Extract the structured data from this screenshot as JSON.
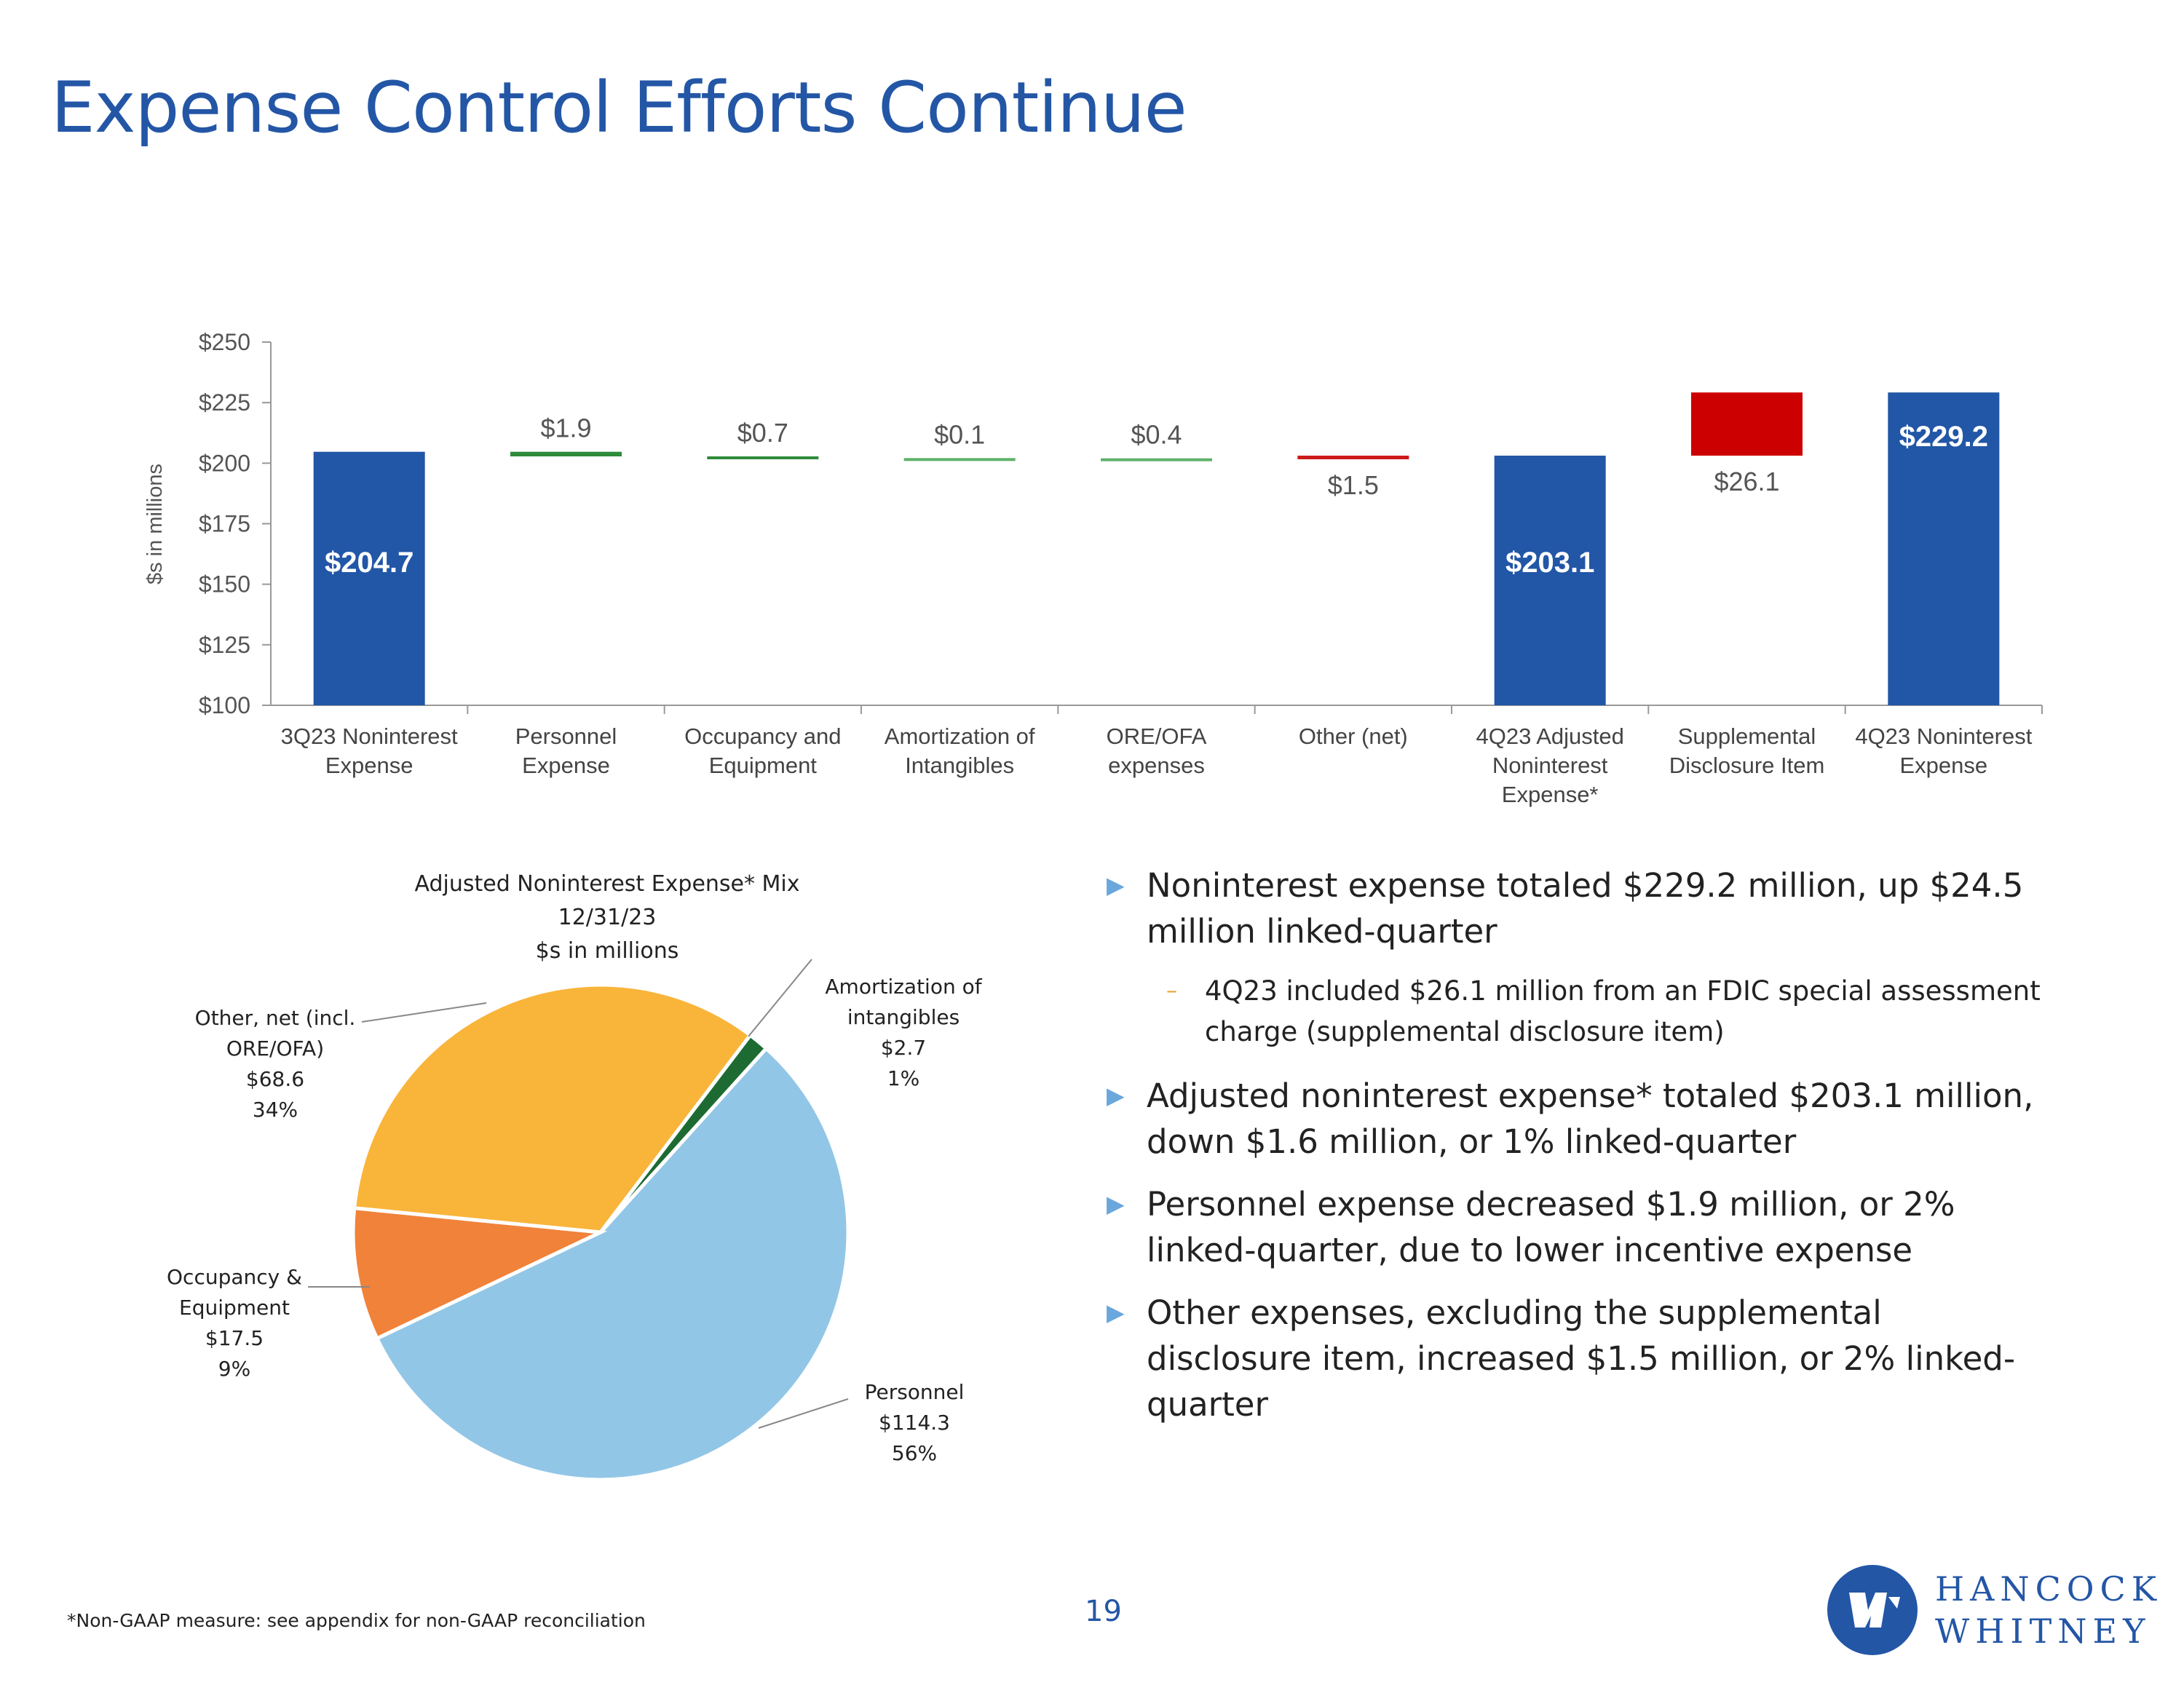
{
  "title": "Expense Control Efforts Continue",
  "chart_data": [
    {
      "type": "bar",
      "subtype": "waterfall",
      "ylabel": "$s in millions",
      "ylim": [
        100,
        250
      ],
      "yticks": [
        100,
        125,
        150,
        175,
        200,
        225,
        250
      ],
      "ytick_labels": [
        "$100",
        "$125",
        "$150",
        "$175",
        "$200",
        "$225",
        "$250"
      ],
      "categories": [
        [
          "3Q23 Noninterest",
          "Expense"
        ],
        [
          "Personnel",
          "Expense"
        ],
        [
          "Occupancy and",
          "Equipment"
        ],
        [
          "Amortization of",
          "Intangibles"
        ],
        [
          "ORE/OFA",
          "expenses"
        ],
        [
          "Other (net)"
        ],
        [
          "4Q23 Adjusted",
          "Noninterest",
          "Expense*"
        ],
        [
          "Supplemental",
          "Disclosure Item"
        ],
        [
          "4Q23 Noninterest",
          "Expense"
        ]
      ],
      "bars": [
        {
          "start": 100,
          "end": 204.7,
          "kind": "total",
          "label": "$204.7",
          "color": "#2256a6"
        },
        {
          "start": 204.7,
          "end": 202.8,
          "kind": "decrease",
          "label": "$1.9",
          "color": "#2e8b3a"
        },
        {
          "start": 202.8,
          "end": 202.1,
          "kind": "decrease",
          "label": "$0.7",
          "color": "#2e8b3a"
        },
        {
          "start": 202.1,
          "end": 202.0,
          "kind": "decrease",
          "label": "$0.1",
          "color": "#5fb16a"
        },
        {
          "start": 202.0,
          "end": 201.6,
          "kind": "decrease",
          "label": "$0.4",
          "color": "#5fb16a"
        },
        {
          "start": 201.6,
          "end": 203.1,
          "kind": "increase",
          "label": "$1.5",
          "color": "#cc1a1a"
        },
        {
          "start": 100,
          "end": 203.1,
          "kind": "total",
          "label": "$203.1",
          "color": "#2256a6"
        },
        {
          "start": 203.1,
          "end": 229.2,
          "kind": "increase",
          "label": "$26.1",
          "color": "#cc0000"
        },
        {
          "start": 100,
          "end": 229.2,
          "kind": "total",
          "label": "$229.2",
          "color": "#2256a6"
        }
      ]
    },
    {
      "type": "pie",
      "title": [
        "Adjusted Noninterest Expense* Mix",
        "12/31/23",
        "$s in millions"
      ],
      "slices": [
        {
          "name": "Personnel",
          "label": [
            "Personnel",
            "$114.3",
            "56%"
          ],
          "value": 114.3,
          "percent": "56%",
          "color": "#92c6e6"
        },
        {
          "name": "Occupancy & Equipment",
          "label": [
            "Occupancy &",
            "Equipment",
            "$17.5",
            "9%"
          ],
          "value": 17.5,
          "percent": "9%",
          "color": "#f0823a"
        },
        {
          "name": "Other, net (incl. ORE/OFA)",
          "label": [
            "Other, net (incl.",
            "ORE/OFA)",
            "$68.6",
            "34%"
          ],
          "value": 68.6,
          "percent": "34%",
          "color": "#f9b43a"
        },
        {
          "name": "Amortization of intangibles",
          "label": [
            "Amortization of",
            "intangibles",
            "$2.7",
            "1%"
          ],
          "value": 2.7,
          "percent": "1%",
          "color": "#1d6b33"
        }
      ]
    }
  ],
  "bullets": [
    {
      "text": "Noninterest expense totaled $229.2 million, up $24.5 million linked-quarter",
      "sub": [
        "4Q23 included $26.1 million from an FDIC special assessment charge (supplemental disclosure item)"
      ]
    },
    {
      "text": "Adjusted noninterest expense* totaled $203.1 million, down $1.6 million, or 1% linked-quarter",
      "sub": []
    },
    {
      "text": "Personnel expense decreased $1.9 million, or 2% linked-quarter, due to lower incentive expense",
      "sub": []
    },
    {
      "text": "Other expenses, excluding the supplemental disclosure item, increased $1.5 million, or 2% linked-quarter",
      "sub": []
    }
  ],
  "footnote": "*Non-GAAP measure: see appendix for non-GAAP reconciliation",
  "page_number": "19",
  "logo": {
    "line1": "HANCOCK",
    "line2": "WHITNEY"
  }
}
